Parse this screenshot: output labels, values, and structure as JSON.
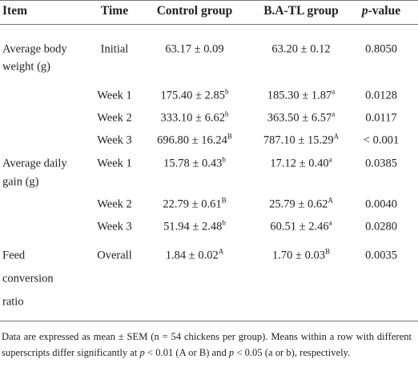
{
  "table": {
    "columns": [
      "Item",
      "Time",
      "Control group",
      "B.A-TL group"
    ],
    "p_column": {
      "italic": "p",
      "text": "-value"
    },
    "groups": [
      {
        "item": [
          "Average body",
          "weight (g)"
        ],
        "rows": [
          {
            "time": "Initial",
            "control": {
              "value": "63.17 ± 0.09"
            },
            "treatment": {
              "value": "63.20 ± 0.12"
            },
            "p": "0.8050"
          },
          {
            "time": "Week 1",
            "control": {
              "value": "175.40 ± 2.85",
              "sup": "b"
            },
            "treatment": {
              "value": "185.30 ± 1.87",
              "sup": "a"
            },
            "p": "0.0128"
          },
          {
            "time": "Week 2",
            "control": {
              "value": "333.10 ± 6.62",
              "sup": "b"
            },
            "treatment": {
              "value": "363.50 ± 6.57",
              "sup": "a"
            },
            "p": "0.0117"
          },
          {
            "time": "Week 3",
            "control": {
              "value": "696.80 ± 16.24",
              "sup": "B"
            },
            "treatment": {
              "value": "787.10 ± 15.29",
              "sup": "A"
            },
            "p": "< 0.001"
          }
        ]
      },
      {
        "item": [
          "Average daily",
          "gain (g)"
        ],
        "rows": [
          {
            "time": "Week 1",
            "control": {
              "value": "15.78 ± 0.43",
              "sup": "b"
            },
            "treatment": {
              "value": "17.12 ± 0.40",
              "sup": "a"
            },
            "p": "0.0385"
          },
          {
            "time": "Week 2",
            "control": {
              "value": "22.79 ± 0.61",
              "sup": "B"
            },
            "treatment": {
              "value": "25.79 ± 0.62",
              "sup": "A"
            },
            "p": "0.0040"
          },
          {
            "time": "Week 3",
            "control": {
              "value": "51.94 ± 2.48",
              "sup": "b"
            },
            "treatment": {
              "value": "60.51 ± 2.46",
              "sup": "a"
            },
            "p": "0.0280"
          }
        ]
      },
      {
        "item": [
          "Feed",
          "conversion",
          "ratio"
        ],
        "rows": [
          {
            "time": "Overall",
            "control": {
              "value": "1.84 ± 0.02",
              "sup": "A"
            },
            "treatment": {
              "value": "1.70 ± 0.03",
              "sup": "B"
            },
            "p": "0.0035"
          }
        ]
      }
    ],
    "footnote": [
      "Data are expressed as mean ± SEM (n = 54 chickens per group). Means within a row with different superscripts differ significantly at ",
      "p",
      " < 0.01 (A or B) and ",
      "p",
      " < 0.05 (a or b), respectively."
    ]
  }
}
